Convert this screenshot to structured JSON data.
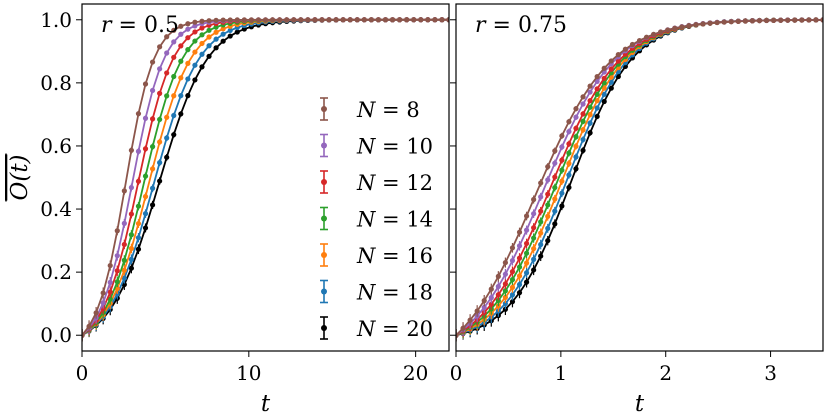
{
  "chart_data": [
    {
      "type": "line",
      "annotation": "r = 0.5",
      "xlabel": "t",
      "ylabel": "O(t) (overlined)",
      "xlim": [
        0,
        22
      ],
      "ylim": [
        -0.05,
        1.05
      ],
      "xticks": [
        0,
        10,
        20
      ],
      "yticks": [
        0.0,
        0.2,
        0.4,
        0.6,
        0.8,
        1.0
      ],
      "xtick_labels": [
        "0",
        "10",
        "20"
      ],
      "ytick_labels": [
        "0.0",
        "0.2",
        "0.4",
        "0.6",
        "0.8",
        "1.0"
      ],
      "legend_position": "lower-right",
      "marker": "dot with error bars",
      "curve_model": "logistic",
      "series": [
        {
          "name": "N = 8",
          "color": "#8c564b",
          "t_half": 2.6,
          "width": 0.85,
          "tmax": 22
        },
        {
          "name": "N = 10",
          "color": "#9467bd",
          "t_half": 3.0,
          "width": 0.95,
          "tmax": 22
        },
        {
          "name": "N = 12",
          "color": "#d62728",
          "t_half": 3.35,
          "width": 1.05,
          "tmax": 22
        },
        {
          "name": "N = 14",
          "color": "#2ca02c",
          "t_half": 3.7,
          "width": 1.15,
          "tmax": 22
        },
        {
          "name": "N = 16",
          "color": "#ff7f0e",
          "t_half": 4.0,
          "width": 1.25,
          "tmax": 22
        },
        {
          "name": "N = 18",
          "color": "#1f77b4",
          "t_half": 4.3,
          "width": 1.35,
          "tmax": 22
        },
        {
          "name": "N = 20",
          "color": "#000000",
          "t_half": 4.6,
          "width": 1.45,
          "tmax": 22
        }
      ]
    },
    {
      "type": "line",
      "annotation": "r = 0.75",
      "xlabel": "t",
      "ylabel": "",
      "xlim": [
        0,
        3.5
      ],
      "ylim": [
        -0.05,
        1.05
      ],
      "xticks": [
        0,
        1,
        2,
        3
      ],
      "yticks": [
        0.0,
        0.2,
        0.4,
        0.6,
        0.8,
        1.0
      ],
      "xtick_labels": [
        "0",
        "1",
        "2",
        "3"
      ],
      "ytick_labels": [],
      "marker": "dot with error bars",
      "curve_model": "logistic",
      "series": [
        {
          "name": "N = 8",
          "color": "#8c564b",
          "t_half": 0.75,
          "width": 0.36,
          "tmax": 3.5
        },
        {
          "name": "N = 10",
          "color": "#9467bd",
          "t_half": 0.83,
          "width": 0.34,
          "tmax": 3.5
        },
        {
          "name": "N = 12",
          "color": "#d62728",
          "t_half": 0.9,
          "width": 0.33,
          "tmax": 3.5
        },
        {
          "name": "N = 14",
          "color": "#2ca02c",
          "t_half": 0.95,
          "width": 0.32,
          "tmax": 3.5
        },
        {
          "name": "N = 16",
          "color": "#ff7f0e",
          "t_half": 1.0,
          "width": 0.31,
          "tmax": 3.5
        },
        {
          "name": "N = 18",
          "color": "#1f77b4",
          "t_half": 1.05,
          "width": 0.3,
          "tmax": 3.5
        },
        {
          "name": "N = 20",
          "color": "#000000",
          "t_half": 1.1,
          "width": 0.29,
          "tmax": 3.5
        }
      ]
    }
  ]
}
